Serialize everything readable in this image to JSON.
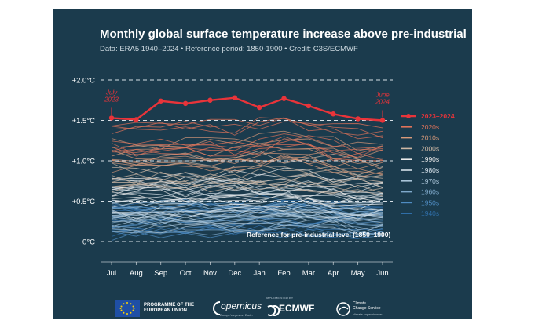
{
  "chart_data": {
    "type": "line",
    "title": "Monthly global surface temperature increase above pre-industrial",
    "subtitle": "Data: ERA5 1940–2024 • Reference period: 1850-1900 • Credit: C3S/ECMWF",
    "categories": [
      "Jul",
      "Aug",
      "Sep",
      "Oct",
      "Nov",
      "Dec",
      "Jan",
      "Feb",
      "Mar",
      "Apr",
      "May",
      "Jun"
    ],
    "yticks": [
      "0°C",
      "+0.5°C",
      "+1.0°C",
      "+1.5°C",
      "+2.0°C"
    ],
    "ytick_values": [
      0,
      0.5,
      1.0,
      1.5,
      2.0
    ],
    "ylim": [
      -0.3,
      2.1
    ],
    "reference_label": "Reference for pre-industrial level (1850–1900)",
    "highlight_series": {
      "name": "2023–2024",
      "color": "#e8343a",
      "values": [
        1.53,
        1.51,
        1.74,
        1.71,
        1.75,
        1.78,
        1.66,
        1.77,
        1.68,
        1.58,
        1.52,
        1.5
      ]
    },
    "annotations": [
      {
        "text": "July\n2023",
        "index": 0
      },
      {
        "text": "June\n2024",
        "index": 11
      }
    ],
    "decades": [
      {
        "name": "2020s",
        "color": "#e0735a",
        "values": [
          1.3,
          1.27,
          1.32,
          1.33,
          1.3,
          1.28,
          1.32,
          1.38,
          1.33,
          1.26,
          1.22,
          1.24
        ]
      },
      {
        "name": "2010s",
        "color": "#d99a7a",
        "values": [
          1.05,
          1.05,
          1.07,
          1.08,
          1.07,
          1.08,
          1.12,
          1.15,
          1.12,
          1.06,
          1.02,
          1.02
        ]
      },
      {
        "name": "2000s",
        "color": "#cdb8a5",
        "values": [
          0.85,
          0.85,
          0.86,
          0.88,
          0.87,
          0.87,
          0.88,
          0.88,
          0.87,
          0.85,
          0.83,
          0.83
        ]
      },
      {
        "name": "1990s",
        "color": "#eaeaea",
        "values": [
          0.62,
          0.62,
          0.63,
          0.64,
          0.63,
          0.63,
          0.65,
          0.66,
          0.64,
          0.62,
          0.6,
          0.6
        ]
      },
      {
        "name": "1980s",
        "color": "#d6e1ea",
        "values": [
          0.5,
          0.51,
          0.52,
          0.52,
          0.51,
          0.52,
          0.53,
          0.54,
          0.52,
          0.5,
          0.49,
          0.49
        ]
      },
      {
        "name": "1970s",
        "color": "#a9c4d8",
        "values": [
          0.34,
          0.34,
          0.35,
          0.36,
          0.35,
          0.35,
          0.37,
          0.37,
          0.36,
          0.34,
          0.33,
          0.33
        ]
      },
      {
        "name": "1960s",
        "color": "#7fa9cb",
        "values": [
          0.3,
          0.3,
          0.31,
          0.32,
          0.31,
          0.31,
          0.32,
          0.33,
          0.32,
          0.3,
          0.29,
          0.29
        ]
      },
      {
        "name": "1950s",
        "color": "#4f8cc2",
        "values": [
          0.22,
          0.23,
          0.24,
          0.25,
          0.24,
          0.24,
          0.25,
          0.25,
          0.24,
          0.22,
          0.21,
          0.22
        ]
      },
      {
        "name": "1940s",
        "color": "#2f6ea8",
        "values": [
          0.3,
          0.31,
          0.32,
          0.32,
          0.31,
          0.31,
          0.33,
          0.34,
          0.32,
          0.3,
          0.29,
          0.3
        ]
      }
    ]
  },
  "footer": {
    "eu_text": "PROGRAMME OF THE\nEUROPEAN UNION",
    "copernicus_text": "opernicus",
    "copernicus_sub": "Europe's eyes on Earth",
    "ecmwf_pre": "IMPLEMENTED BY",
    "ecmwf_text": "ECMWF",
    "c3s_text": "Climate\nChange Service",
    "c3s_sub": "climate.copernicus.eu"
  }
}
